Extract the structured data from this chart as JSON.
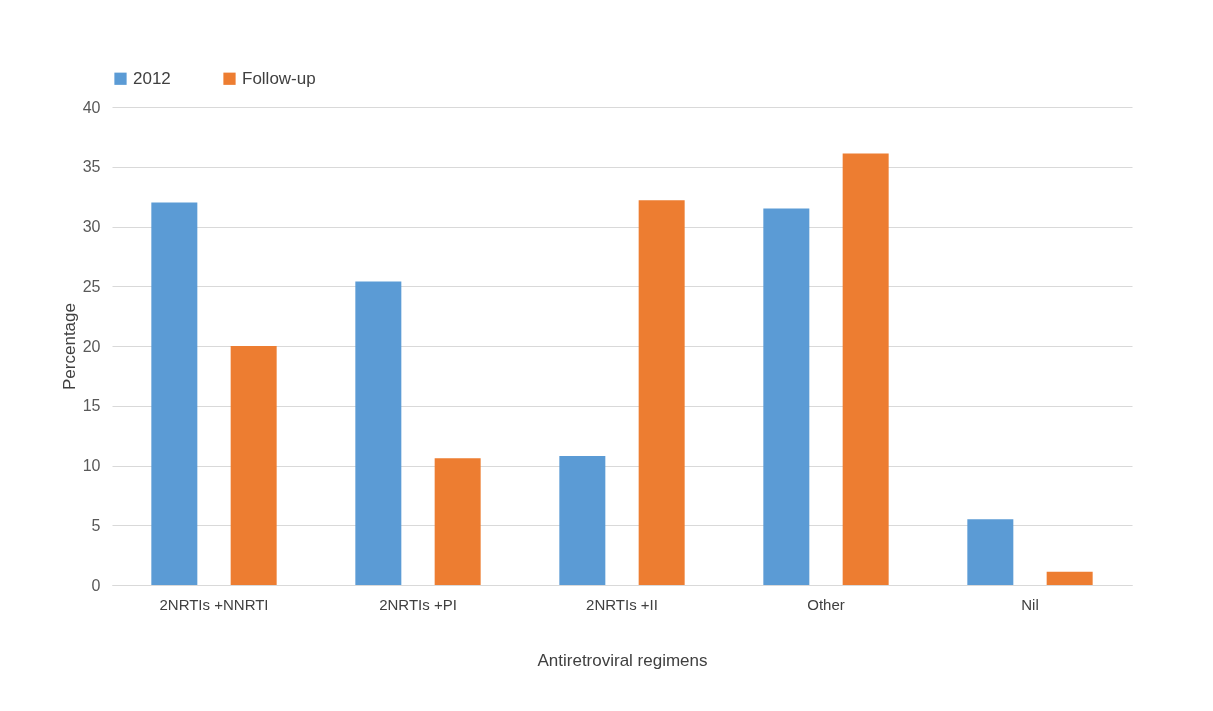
{
  "chart_data": {
    "type": "bar",
    "xlabel": "Antiretroviral regimens",
    "ylabel": "Percentage",
    "categories": [
      "2NRTIs +NNRTI",
      "2NRTIs +PI",
      "2NRTIs +II",
      "Other",
      "Nil"
    ],
    "series": [
      {
        "name": "2012",
        "color": "#5b9bd5",
        "values": [
          32,
          25.4,
          10.8,
          31.5,
          5.5
        ]
      },
      {
        "name": "Follow-up",
        "color": "#ed7d31",
        "values": [
          20,
          10.6,
          32.2,
          36.1,
          1.1
        ]
      }
    ],
    "ylim": [
      0,
      40
    ],
    "yticks": [
      0,
      5,
      10,
      15,
      20,
      25,
      30,
      35,
      40
    ],
    "grid": "y",
    "legend": "top"
  }
}
